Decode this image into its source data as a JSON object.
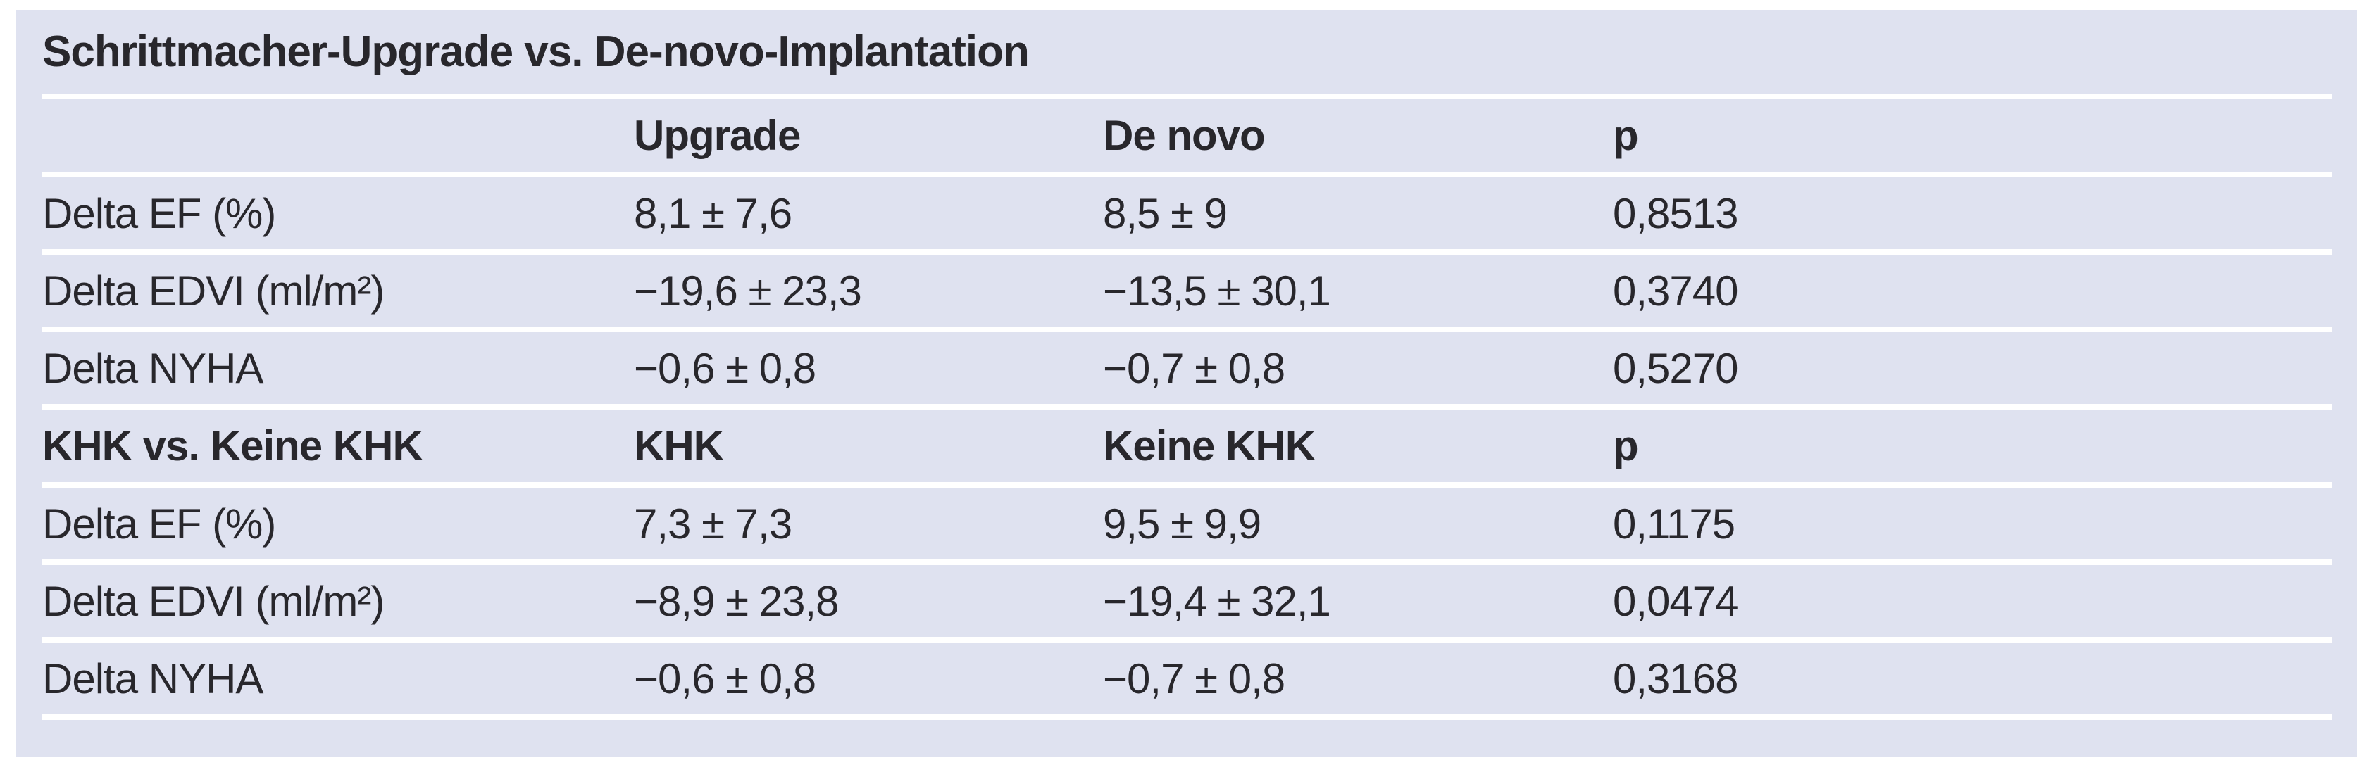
{
  "table": {
    "title": "Schrittmacher-Upgrade vs. De-novo-Implantation",
    "section1": {
      "header": {
        "label": "",
        "col1": "Upgrade",
        "col2": "De novo",
        "col3": "p"
      },
      "rows": [
        {
          "label": "Delta EF (%)",
          "v1": "8,1 ± 7,6",
          "v2": "8,5 ± 9",
          "p": "0,8513"
        },
        {
          "label": "Delta EDVI (ml/m²)",
          "v1": "−19,6 ± 23,3",
          "v2": "−13,5 ± 30,1",
          "p": "0,3740"
        },
        {
          "label": "Delta NYHA",
          "v1": "−0,6 ± 0,8",
          "v2": "−0,7 ± 0,8",
          "p": "0,5270"
        }
      ]
    },
    "section2": {
      "header": {
        "label": "KHK vs. Keine KHK",
        "col1": "KHK",
        "col2": "Keine KHK",
        "col3": "p"
      },
      "rows": [
        {
          "label": "Delta EF (%)",
          "v1": "7,3 ± 7,3",
          "v2": "9,5 ± 9,9",
          "p": "0,1175"
        },
        {
          "label": "Delta EDVI (ml/m²)",
          "v1": "−8,9 ± 23,8",
          "v2": "−19,4 ± 32,1",
          "p": "0,0474"
        },
        {
          "label": "Delta NYHA",
          "v1": "−0,6 ± 0,8",
          "v2": "−0,7 ± 0,8",
          "p": "0,3168"
        }
      ]
    },
    "colors": {
      "panel_bg": "#dfe2f0",
      "separator": "#ffffff",
      "text": "#28272c",
      "page_bg": "#ffffff"
    }
  }
}
